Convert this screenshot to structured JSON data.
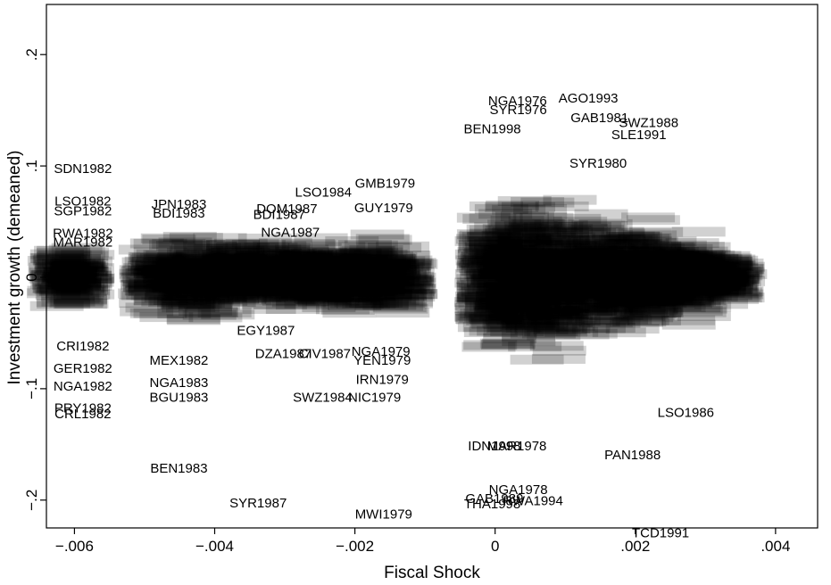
{
  "chart_data": {
    "type": "scatter",
    "marker": "text-label",
    "title": "",
    "xlabel": "Fiscal Shock",
    "ylabel": "Investment growth (demeaned)",
    "xlim": [
      -0.0064,
      0.0046
    ],
    "ylim": [
      -0.225,
      0.245
    ],
    "xticks": [
      -0.006,
      -0.004,
      -0.002,
      0,
      0.002,
      0.004
    ],
    "xtick_labels": [
      "−.006",
      "−.004",
      "−.002",
      "0",
      ".002",
      ".004"
    ],
    "yticks": [
      -0.2,
      -0.1,
      0,
      0.1,
      0.2
    ],
    "ytick_labels": [
      "−.2",
      "−.1",
      "0",
      ".1",
      ".2"
    ],
    "grid": false,
    "legend": "none",
    "points": [
      {
        "label": "NGA1976",
        "x": 0.00032,
        "y": 0.1585
      },
      {
        "label": "AGO1993",
        "x": 0.00133,
        "y": 0.161
      },
      {
        "label": "SYR1976",
        "x": 0.00033,
        "y": 0.1505
      },
      {
        "label": "GAB1981",
        "x": 0.00149,
        "y": 0.1435
      },
      {
        "label": "SWZ1988",
        "x": 0.00219,
        "y": 0.139
      },
      {
        "label": "SLE1991",
        "x": 0.00205,
        "y": 0.128
      },
      {
        "label": "BEN1998",
        "x": -4e-05,
        "y": 0.1335
      },
      {
        "label": "SDN1982",
        "x": -0.00588,
        "y": 0.0975
      },
      {
        "label": "LSO1984",
        "x": -0.00245,
        "y": 0.0765
      },
      {
        "label": "GMB1979",
        "x": -0.00157,
        "y": 0.0845
      },
      {
        "label": "SYR1980",
        "x": 0.00147,
        "y": 0.1025
      },
      {
        "label": "GUY1979",
        "x": -0.00159,
        "y": 0.0625
      },
      {
        "label": "LSO1982",
        "x": -0.00588,
        "y": 0.0685
      },
      {
        "label": "SGP1982",
        "x": -0.00588,
        "y": 0.0595
      },
      {
        "label": "RWA1982",
        "x": -0.00588,
        "y": 0.0395
      },
      {
        "label": "MAR1982",
        "x": -0.00588,
        "y": 0.0315
      },
      {
        "label": "JPN1983",
        "x": -0.00451,
        "y": 0.0655
      },
      {
        "label": "BDI1983",
        "x": -0.00451,
        "y": 0.0575
      },
      {
        "label": "BDI1987",
        "x": -0.00308,
        "y": 0.0565
      },
      {
        "label": "DOM1987",
        "x": -0.00297,
        "y": 0.0615
      },
      {
        "label": "NGA1987",
        "x": -0.00292,
        "y": 0.0405
      },
      {
        "label": "CRI1982",
        "x": -0.00588,
        "y": -0.0615
      },
      {
        "label": "GER1982",
        "x": -0.00588,
        "y": -0.0815
      },
      {
        "label": "NGA1982",
        "x": -0.00588,
        "y": -0.0975
      },
      {
        "label": "PRY1982",
        "x": -0.00588,
        "y": -0.1175
      },
      {
        "label": "CRL1982",
        "x": -0.00588,
        "y": -0.1225
      },
      {
        "label": "MEX1982",
        "x": -0.00451,
        "y": -0.0745
      },
      {
        "label": "NGA1983",
        "x": -0.00451,
        "y": -0.0945
      },
      {
        "label": "BGU1983",
        "x": -0.00451,
        "y": -0.1075
      },
      {
        "label": "BEN1983",
        "x": -0.00451,
        "y": -0.1715
      },
      {
        "label": "DZA1987",
        "x": -0.00302,
        "y": -0.0685
      },
      {
        "label": "EGY1987",
        "x": -0.00327,
        "y": -0.0475
      },
      {
        "label": "CIV1987",
        "x": -0.00243,
        "y": -0.0685
      },
      {
        "label": "SYR1987",
        "x": -0.00338,
        "y": -0.2025
      },
      {
        "label": "NGA1979",
        "x": -0.00163,
        "y": -0.0665
      },
      {
        "label": "YEN1979",
        "x": -0.00161,
        "y": -0.0745
      },
      {
        "label": "IRN1979",
        "x": -0.00161,
        "y": -0.0915
      },
      {
        "label": "SWZ1984",
        "x": -0.00246,
        "y": -0.1075
      },
      {
        "label": "NIC1979",
        "x": -0.00172,
        "y": -0.1075
      },
      {
        "label": "MWI1979",
        "x": -0.00159,
        "y": -0.2125
      },
      {
        "label": "PAN1988",
        "x": 0.00196,
        "y": -0.1595
      },
      {
        "label": "LSO1986",
        "x": 0.00272,
        "y": -0.1215
      },
      {
        "label": "TCD1991",
        "x": 0.00236,
        "y": -0.2295
      },
      {
        "label": "NGA1978",
        "x": 0.00033,
        "y": -0.1905
      },
      {
        "label": "GAB1989",
        "x": -1e-05,
        "y": -0.1985
      },
      {
        "label": "THA1998",
        "x": -4e-05,
        "y": -0.2035
      },
      {
        "label": "RWA1994",
        "x": 0.00054,
        "y": -0.2005
      },
      {
        "label": "IDN1998",
        "x": -1e-05,
        "y": -0.1515
      },
      {
        "label": "MAR1978",
        "x": 0.00031,
        "y": -0.1515
      }
    ]
  }
}
